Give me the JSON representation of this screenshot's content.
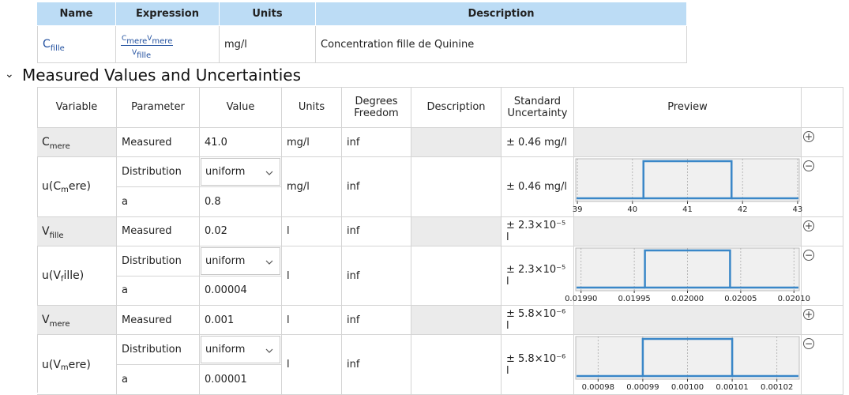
{
  "equation_table": {
    "headers": [
      "Name",
      "Expression",
      "Units",
      "Description"
    ],
    "rows": [
      {
        "name": {
          "base": "C",
          "sub": "fille"
        },
        "expression": {
          "numerator": [
            {
              "base": "C",
              "sub": "mere"
            },
            {
              "base": "V",
              "sub": "mere"
            }
          ],
          "denominator": [
            {
              "base": "V",
              "sub": "fille"
            }
          ]
        },
        "units": "mg/l",
        "description": "Concentration fille de Quinine"
      }
    ]
  },
  "section": {
    "toggle": "⌄",
    "title": "Measured Values and Uncertainties"
  },
  "measured_table": {
    "headers": [
      "Variable",
      "Parameter",
      "Value",
      "Units",
      "Degrees Freedom",
      "Description",
      "Standard Uncertainty",
      "Preview"
    ],
    "variables": [
      {
        "name": {
          "base": "C",
          "sub": "mere"
        },
        "parameter": "Measured",
        "value": "41.0",
        "units": "mg/l",
        "degrees_freedom": "inf",
        "standard_uncertainty": "± 0.46 mg/l",
        "add_button": "+",
        "uncertainty": {
          "label": {
            "before": "u(C",
            "sub": "m",
            "after": "ere)"
          },
          "rows": [
            {
              "parameter": "Distribution",
              "value": "uniform"
            },
            {
              "parameter": "a",
              "value": "0.8"
            }
          ],
          "units": "mg/l",
          "degrees_freedom": "inf",
          "standard_uncertainty": "± 0.46 mg/l",
          "remove_button": "−",
          "preview": {
            "type": "line",
            "xlim": [
              38.97,
              43.03
            ],
            "xticks": [
              39,
              40,
              41,
              42,
              43
            ],
            "edges": [
              40.2,
              41.8
            ],
            "color": "#3a87c8",
            "grid": true
          }
        }
      },
      {
        "name": {
          "base": "V",
          "sub": "fille"
        },
        "parameter": "Measured",
        "value": "0.02",
        "units": "l",
        "degrees_freedom": "inf",
        "standard_uncertainty": "± 2.3×10⁻⁵ l",
        "add_button": "+",
        "uncertainty": {
          "label": {
            "before": "u(V",
            "sub": "f",
            "after": "ille)"
          },
          "rows": [
            {
              "parameter": "Distribution",
              "value": "uniform"
            },
            {
              "parameter": "a",
              "value": "0.00004"
            }
          ],
          "units": "l",
          "degrees_freedom": "inf",
          "standard_uncertainty": "± 2.3×10⁻⁵ l",
          "remove_button": "−",
          "preview": {
            "type": "line",
            "xlim": [
              0.019895,
              0.020105
            ],
            "xticks": [
              {
                "value": 0.0199,
                "label": "0.01990"
              },
              0.01995,
              {
                "value": 0.02,
                "label": "0.02000"
              },
              0.02005,
              {
                "value": 0.0201,
                "label": "0.02010"
              }
            ],
            "edges": [
              0.01996,
              0.02004
            ],
            "color": "#3a87c8",
            "grid": true
          }
        }
      },
      {
        "name": {
          "base": "V",
          "sub": "mere"
        },
        "parameter": "Measured",
        "value": "0.001",
        "units": "l",
        "degrees_freedom": "inf",
        "standard_uncertainty": "± 5.8×10⁻⁶ l",
        "add_button": "+",
        "uncertainty": {
          "label": {
            "before": "u(V",
            "sub": "m",
            "after": "ere)"
          },
          "rows": [
            {
              "parameter": "Distribution",
              "value": "uniform"
            },
            {
              "parameter": "a",
              "value": "0.00001"
            }
          ],
          "units": "l",
          "degrees_freedom": "inf",
          "standard_uncertainty": "± 5.8×10⁻⁶ l",
          "remove_button": "−",
          "preview": {
            "type": "line",
            "xlim": [
              0.000975,
              0.001025
            ],
            "xticks": [
              0.00098,
              0.00099,
              {
                "value": 0.001,
                "label": "0.00100"
              },
              0.00101,
              0.00102
            ],
            "edges": [
              0.00099,
              0.00101
            ],
            "color": "#3a87c8",
            "grid": true
          }
        }
      }
    ]
  }
}
